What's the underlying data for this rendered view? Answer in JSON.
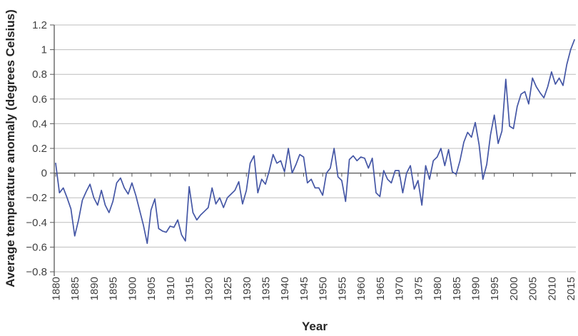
{
  "chart_data": {
    "type": "line",
    "title": "",
    "xlabel": "Year",
    "ylabel": "Average temperature anomaly (degrees Celsius)",
    "x_start": 1880,
    "x_end": 2016,
    "x_tick_interval": 5,
    "x_tick_labels": [
      "1880",
      "1885",
      "1890",
      "1895",
      "1900",
      "1905",
      "1910",
      "1915",
      "1920",
      "1925",
      "1930",
      "1935",
      "1940",
      "1945",
      "1950",
      "1955",
      "1960",
      "1965",
      "1970",
      "1975",
      "1980",
      "1985",
      "1990",
      "1995",
      "2000",
      "2005",
      "2010",
      "2015"
    ],
    "y_tick_labels": [
      "1.2",
      "1",
      "0.8",
      "0.6",
      "0.4",
      "0.2",
      "0",
      "−0.2",
      "−0.4",
      "−0.6",
      "−0.8"
    ],
    "y_ticks": [
      1.2,
      1.0,
      0.8,
      0.6,
      0.4,
      0.2,
      0,
      -0.2,
      -0.4,
      -0.6,
      -0.8
    ],
    "ylim": [
      -0.8,
      1.2
    ],
    "grid": true,
    "legend": "none",
    "line_color": "#4456a5",
    "grid_color": "#bdbdbd",
    "axis_color": "#595959",
    "text_color": "#3f3f3f",
    "series": [
      {
        "name": "Average temperature anomaly",
        "values": [
          0.08,
          -0.16,
          -0.12,
          -0.2,
          -0.29,
          -0.51,
          -0.38,
          -0.22,
          -0.15,
          -0.09,
          -0.2,
          -0.26,
          -0.14,
          -0.26,
          -0.32,
          -0.23,
          -0.08,
          -0.04,
          -0.12,
          -0.17,
          -0.08,
          -0.18,
          -0.3,
          -0.42,
          -0.57,
          -0.3,
          -0.21,
          -0.45,
          -0.47,
          -0.48,
          -0.43,
          -0.44,
          -0.38,
          -0.5,
          -0.55,
          -0.11,
          -0.32,
          -0.38,
          -0.34,
          -0.31,
          -0.28,
          -0.12,
          -0.25,
          -0.2,
          -0.28,
          -0.2,
          -0.17,
          -0.14,
          -0.07,
          -0.25,
          -0.14,
          0.08,
          0.14,
          -0.16,
          -0.05,
          -0.09,
          0.02,
          0.15,
          0.08,
          0.1,
          0.01,
          0.2,
          0.0,
          0.07,
          0.15,
          0.13,
          -0.08,
          -0.05,
          -0.12,
          -0.12,
          -0.18,
          0.0,
          0.04,
          0.2,
          -0.03,
          -0.06,
          -0.23,
          0.11,
          0.14,
          0.1,
          0.13,
          0.12,
          0.04,
          0.12,
          -0.16,
          -0.19,
          0.02,
          -0.05,
          -0.08,
          0.02,
          0.02,
          -0.16,
          0.0,
          0.06,
          -0.13,
          -0.06,
          -0.26,
          0.06,
          -0.05,
          0.1,
          0.13,
          0.2,
          0.06,
          0.19,
          0.01,
          -0.01,
          0.1,
          0.25,
          0.33,
          0.29,
          0.41,
          0.23,
          -0.05,
          0.07,
          0.31,
          0.47,
          0.24,
          0.34,
          0.76,
          0.38,
          0.36,
          0.54,
          0.64,
          0.66,
          0.56,
          0.77,
          0.7,
          0.65,
          0.61,
          0.7,
          0.82,
          0.72,
          0.77,
          0.71,
          0.88,
          1.0,
          1.08
        ]
      }
    ]
  }
}
